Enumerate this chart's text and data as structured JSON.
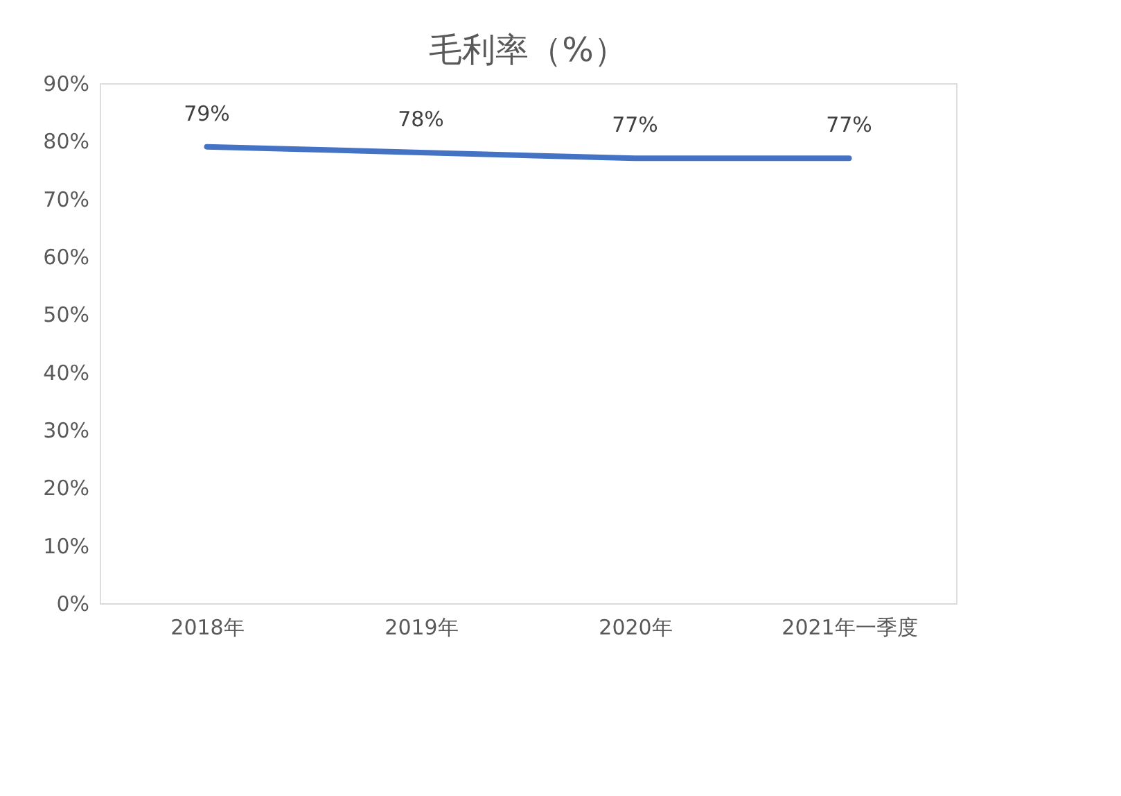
{
  "chart_data": {
    "type": "line",
    "title": "毛利率（%）",
    "categories": [
      "2018年",
      "2019年",
      "2020年",
      "2021年一季度"
    ],
    "series": [
      {
        "color": "#4472c4",
        "values": [
          79,
          78,
          77,
          77
        ]
      }
    ],
    "value_labels": [
      "79%",
      "78%",
      "77%",
      "77%"
    ],
    "ylim": [
      0,
      90
    ],
    "yticks": [
      {
        "value": 0,
        "label": "0%"
      },
      {
        "value": 10,
        "label": "10%"
      },
      {
        "value": 20,
        "label": "20%"
      },
      {
        "value": 30,
        "label": "30%"
      },
      {
        "value": 40,
        "label": "40%"
      },
      {
        "value": 50,
        "label": "50%"
      },
      {
        "value": 60,
        "label": "60%"
      },
      {
        "value": 70,
        "label": "70%"
      },
      {
        "value": 80,
        "label": "80%"
      },
      {
        "value": 90,
        "label": "90%"
      }
    ],
    "grid": false,
    "legend": false,
    "marker": "none",
    "line_style": "solid"
  }
}
